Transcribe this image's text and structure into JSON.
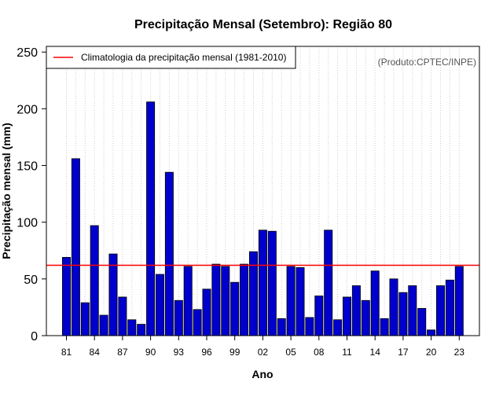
{
  "chart_data": {
    "type": "bar",
    "title": "Precipitação Mensal (Setembro): Região 80",
    "xlabel": "Ano",
    "ylabel": "Precipitação mensal (mm)",
    "credit": "(Produto:CPTEC/INPE)",
    "ylim": [
      0,
      255
    ],
    "yticks": [
      0,
      50,
      100,
      150,
      200,
      250
    ],
    "categories": [
      "1981",
      "1982",
      "1983",
      "1984",
      "1985",
      "1986",
      "1987",
      "1988",
      "1989",
      "1990",
      "1991",
      "1992",
      "1993",
      "1994",
      "1995",
      "1996",
      "1997",
      "1998",
      "1999",
      "2000",
      "2001",
      "2002",
      "2003",
      "2004",
      "2005",
      "2006",
      "2007",
      "2008",
      "2009",
      "2010",
      "2011",
      "2012",
      "2013",
      "2014",
      "2015",
      "2016",
      "2017",
      "2018",
      "2019",
      "2020",
      "2021",
      "2022",
      "2023"
    ],
    "values": [
      69,
      156,
      29,
      97,
      18,
      72,
      34,
      14,
      10,
      206,
      54,
      144,
      31,
      61,
      23,
      41,
      63,
      61,
      47,
      63,
      74,
      93,
      92,
      15,
      61,
      60,
      16,
      35,
      93,
      14,
      34,
      44,
      31,
      57,
      15,
      50,
      38,
      44,
      24,
      5,
      44,
      49,
      61
    ],
    "xtick_labels": [
      "81",
      "84",
      "87",
      "90",
      "93",
      "96",
      "99",
      "02",
      "05",
      "08",
      "11",
      "14",
      "17",
      "20",
      "23"
    ],
    "xtick_every": 3,
    "grid": "vertical-dotted",
    "bar_color": "#0000cc",
    "climatology": {
      "value": 62,
      "label": "Climatologia da precipitação mensal (1981-2010)",
      "color": "#ff0000"
    },
    "legend_position": "top-left"
  }
}
